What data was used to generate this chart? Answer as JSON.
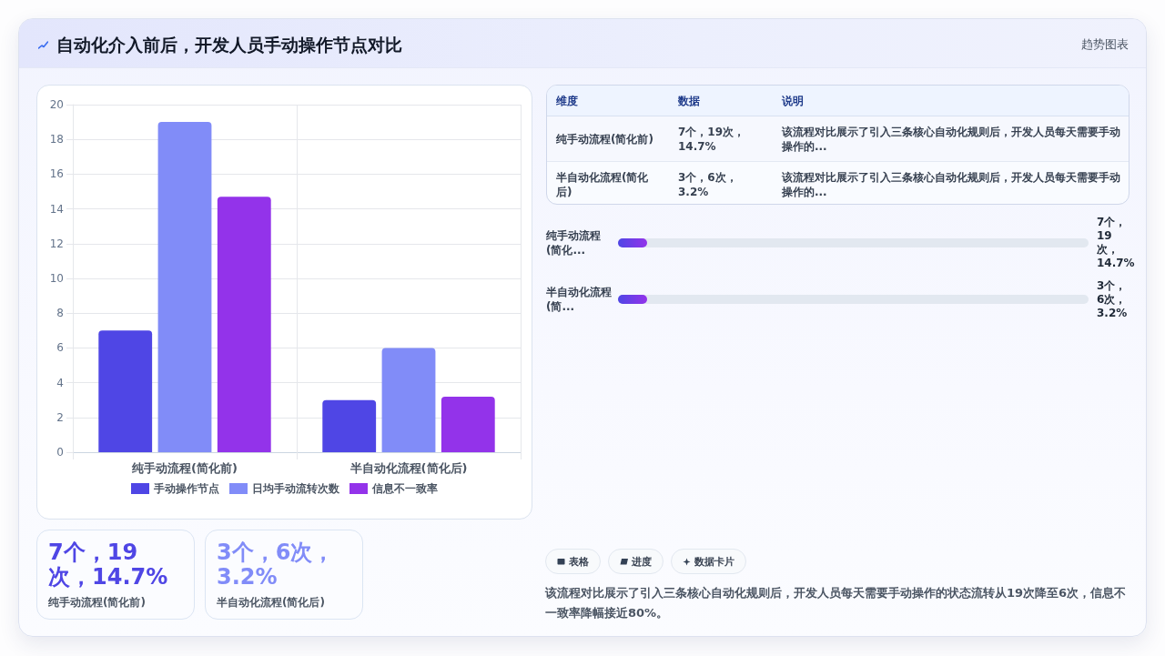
{
  "chart_data": [
    {
      "type": "other",
      "title": "自动化介入前后，开发人员手动操作节点对比",
      "subtitle": "趋势图表"
    },
    {
      "type": "bar",
      "categories": [
        "纯手动流程(简化前)",
        "半自动化流程(简化后)"
      ],
      "series": [
        {
          "name": "手动操作节点",
          "color": "#4f46e5",
          "values": [
            7,
            3
          ]
        },
        {
          "name": "日均手动流转次数",
          "color": "#818cf8",
          "values": [
            19,
            6
          ]
        },
        {
          "name": "信息不一致率",
          "color": "#9333ea",
          "values": [
            14.7,
            3.2
          ]
        }
      ],
      "ylim": [
        0,
        20
      ],
      "yticks": [
        0,
        2,
        4,
        6,
        8,
        10,
        12,
        14,
        16,
        18,
        20
      ],
      "grid": true,
      "legend": "bottom"
    },
    {
      "type": "other",
      "annotations": [
        "维度",
        "数据",
        "说明",
        "纯手动流程(简化前)",
        "7个，19次，14.7%",
        "该流程对比展示了引入三条核心自动化规则后，开发人员每天需要手动操作的...",
        "半自动化流程(简化后)",
        "3个，6次，3.2%",
        "该流程对比展示了引入三条核心自动化规则后，开发人员每天需要手动操作的..."
      ]
    },
    {
      "type": "other",
      "annotations": [
        "纯手动流程(简化...",
        "7个，19次，14.7%",
        "半自动化流程(简...",
        "3个，6次，3.2%"
      ]
    },
    {
      "type": "other",
      "annotations": [
        "7个，19次，14.7%",
        "纯手动流程(简化前)",
        "3个，6次，3.2%",
        "半自动化流程(简化后)"
      ]
    },
    {
      "type": "other",
      "annotations": [
        "表格",
        "进度",
        "数据卡片",
        "该流程对比展示了引入三条核心自动化规则后，开发人员每天需要手动操作的状态流转从19次降至6次，信息不一致率降幅接近80%。"
      ]
    }
  ]
}
